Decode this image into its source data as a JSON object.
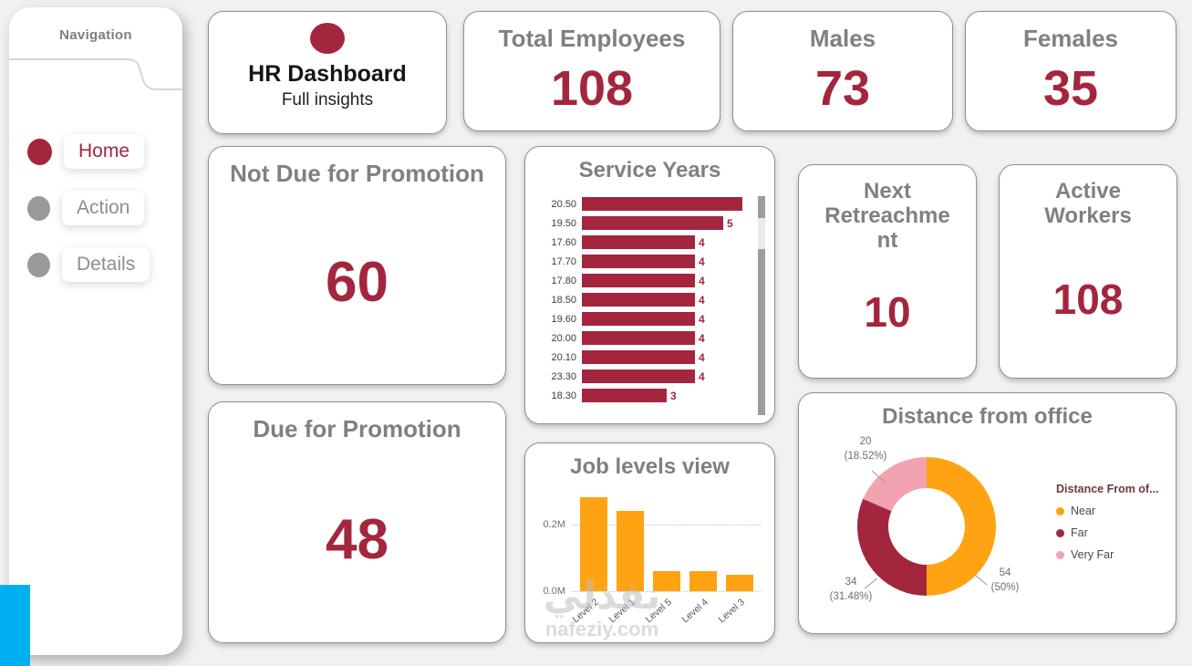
{
  "sidebar": {
    "title": "Navigation",
    "items": [
      {
        "label": "Home",
        "active": true
      },
      {
        "label": "Action",
        "active": false
      },
      {
        "label": "Details",
        "active": false
      }
    ]
  },
  "header_card": {
    "title": "HR Dashboard",
    "subtitle": "Full insights"
  },
  "kpis": {
    "total": {
      "title": "Total Employees",
      "value": "108"
    },
    "males": {
      "title": "Males",
      "value": "73"
    },
    "females": {
      "title": "Females",
      "value": "35"
    },
    "not_due": {
      "title": "Not Due for Promotion",
      "value": "60"
    },
    "next_retreachment": {
      "title": "Next Retreachme nt",
      "value": "10"
    },
    "active_workers": {
      "title": "Active Workers",
      "value": "108"
    },
    "due": {
      "title": "Due for Promotion",
      "value": "48"
    }
  },
  "colors": {
    "maroon": "#A3263E",
    "orange": "#FFA312",
    "pink": "#F2A2B0",
    "blue": "#00B0F0",
    "title_gray": "#808080",
    "background": "#F1F1F1"
  },
  "chart_data": [
    {
      "type": "bar",
      "orientation": "horizontal",
      "title": "Service Years",
      "categories": [
        "20.50",
        "19.50",
        "17.60",
        "17.70",
        "17.80",
        "18.50",
        "19.60",
        "20.00",
        "20.10",
        "23.30",
        "18.30"
      ],
      "values": [
        6,
        5,
        4,
        4,
        4,
        4,
        4,
        4,
        4,
        4,
        3
      ],
      "value_labels": [
        "",
        "5",
        "4",
        "4",
        "4",
        "4",
        "4",
        "4",
        "4",
        "4",
        "3"
      ],
      "series_color": "maroon",
      "xlim": [
        0,
        6
      ],
      "scrollbar": true
    },
    {
      "type": "bar",
      "title": "Job levels view",
      "categories": [
        "Level 2",
        "Level 1",
        "Level 5",
        "Level 4",
        "Level 3"
      ],
      "values": [
        0.28,
        0.24,
        0.06,
        0.06,
        0.05
      ],
      "unit": "M",
      "yticks": [
        "0.2M",
        "0.0M"
      ],
      "ylim": [
        0,
        0.3
      ],
      "series_color": "orange",
      "grid": "dotted"
    },
    {
      "type": "pie",
      "title": "Distance from office",
      "legend_title": "Distance From of...",
      "legend_position": "right",
      "total": 108,
      "slices": [
        {
          "label": "Near",
          "value": 54,
          "pct": "50%",
          "color": "orange"
        },
        {
          "label": "Far",
          "value": 34,
          "pct": "31.48%",
          "color": "maroon"
        },
        {
          "label": "Very Far",
          "value": 20,
          "pct": "18.52%",
          "color": "pink"
        }
      ]
    }
  ],
  "watermark": {
    "line1": "نفذلي",
    "line2": "nafeziy.com"
  }
}
